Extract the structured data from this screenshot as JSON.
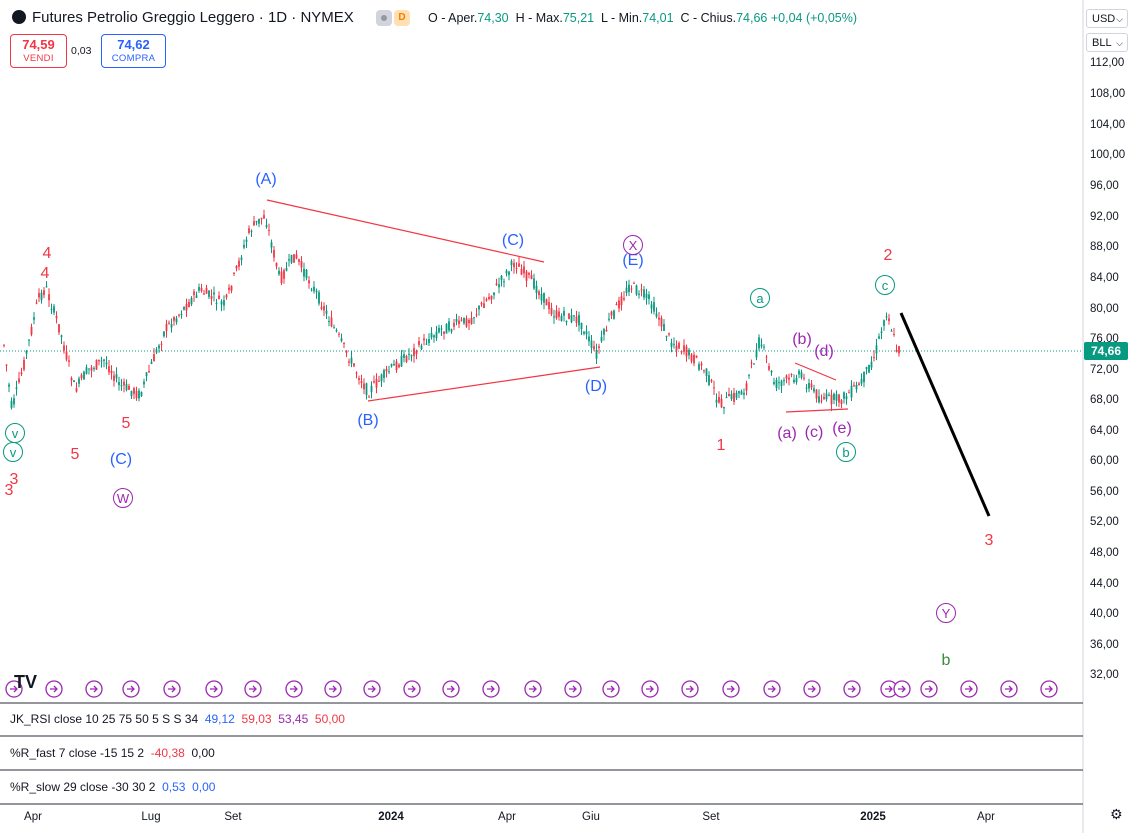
{
  "header": {
    "title": "Futures Petrolio Greggio Leggero · 1D · NYMEX",
    "badge_d": "D",
    "ohlc": {
      "open_label": "O - Aper.",
      "open": "74,30",
      "high_label": "H - Max.",
      "high": "75,21",
      "low_label": "L - Min.",
      "low": "74,01",
      "close_label": "C - Chius.",
      "close": "74,66",
      "change": "+0,04 (+0,05%)"
    }
  },
  "trade": {
    "sell_price": "74,59",
    "sell_label": "VENDI",
    "spread": "0,03",
    "buy_price": "74,62",
    "buy_label": "COMPRA"
  },
  "axis": {
    "currency": "USD",
    "unit": "BLL",
    "price_ticks": [
      "112,00",
      "108,00",
      "104,00",
      "100,00",
      "96,00",
      "92,00",
      "88,00",
      "84,00",
      "80,00",
      "76,00",
      "72,00",
      "68,00",
      "64,00",
      "60,00",
      "56,00",
      "52,00",
      "48,00",
      "44,00",
      "40,00",
      "36,00",
      "32,00"
    ],
    "last_price": "74,66",
    "time_ticks": [
      {
        "label": "Apr",
        "bold": false
      },
      {
        "label": "Lug",
        "bold": false
      },
      {
        "label": "Set",
        "bold": false
      },
      {
        "label": "2024",
        "bold": true
      },
      {
        "label": "Apr",
        "bold": false
      },
      {
        "label": "Giu",
        "bold": false
      },
      {
        "label": "Set",
        "bold": false
      },
      {
        "label": "2025",
        "bold": true
      },
      {
        "label": "Apr",
        "bold": false
      }
    ]
  },
  "indicators": {
    "rsi": {
      "name": "JK_RSI",
      "params": "close 10 25 75 50 5 S S 34",
      "v1": "49,12",
      "v2": "59,03",
      "v3": "53,45",
      "v4": "50,00"
    },
    "rfast": {
      "name": "%R_fast",
      "params": "7 close -15 15 2",
      "v1": "-40,38",
      "v2": "0,00"
    },
    "rslow": {
      "name": "%R_slow",
      "params": "29 close -30 30 2",
      "v1": "0,53",
      "v2": "0,00"
    }
  },
  "wave_labels": [
    {
      "text": "(A)",
      "color": "#2962ff"
    },
    {
      "text": "(B)",
      "color": "#2962ff"
    },
    {
      "text": "(C)",
      "color": "#2962ff"
    },
    {
      "text": "(D)",
      "color": "#2962ff"
    },
    {
      "text": "(E)",
      "color": "#2962ff"
    },
    {
      "text": "(C)",
      "color": "#2962ff"
    },
    {
      "text": "4",
      "color": "#f23645"
    },
    {
      "text": "4",
      "color": "#f23645"
    },
    {
      "text": "5",
      "color": "#f23645"
    },
    {
      "text": "5",
      "color": "#f23645"
    },
    {
      "text": "3",
      "color": "#f23645"
    },
    {
      "text": "3",
      "color": "#f23645"
    },
    {
      "text": "1",
      "color": "#f23645"
    },
    {
      "text": "2",
      "color": "#f23645"
    },
    {
      "text": "3",
      "color": "#f23645"
    },
    {
      "text": "(a)",
      "color": "#9c27b0"
    },
    {
      "text": "(b)",
      "color": "#9c27b0"
    },
    {
      "text": "(c)",
      "color": "#9c27b0"
    },
    {
      "text": "(d)",
      "color": "#9c27b0"
    },
    {
      "text": "(e)",
      "color": "#9c27b0"
    },
    {
      "text": "b",
      "color": "#388e3c"
    }
  ],
  "circled_labels": [
    {
      "text": "v",
      "color": "#089981"
    },
    {
      "text": "v",
      "color": "#089981"
    },
    {
      "text": "W",
      "color": "#9c27b0"
    },
    {
      "text": "X",
      "color": "#9c27b0"
    },
    {
      "text": "Y",
      "color": "#9c27b0"
    },
    {
      "text": "a",
      "color": "#089981"
    },
    {
      "text": "b",
      "color": "#089981"
    },
    {
      "text": "c",
      "color": "#089981"
    }
  ],
  "colors": {
    "up": "#089981",
    "down": "#f23645",
    "trend": "#f23645",
    "projection": "#000000",
    "event": "#9c27b0"
  },
  "event_icon": "arrow-circle-icon",
  "logo_text": "TV"
}
